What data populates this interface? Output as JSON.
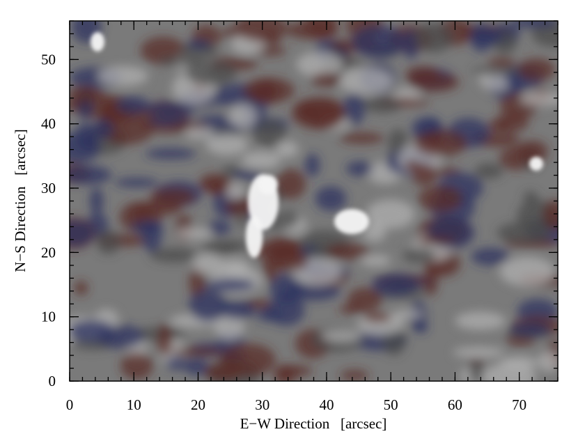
{
  "chart_data": {
    "type": "image",
    "xlabel": "E−W Direction   [arcsec]",
    "ylabel": "N−S Direction   [arcsec]",
    "xlim": [
      0,
      76
    ],
    "ylim": [
      0,
      56
    ],
    "xticks": [
      0,
      10,
      20,
      30,
      40,
      50,
      60,
      70
    ],
    "yticks": [
      0,
      10,
      20,
      30,
      40,
      50
    ],
    "minor_tick_step": 2
  }
}
